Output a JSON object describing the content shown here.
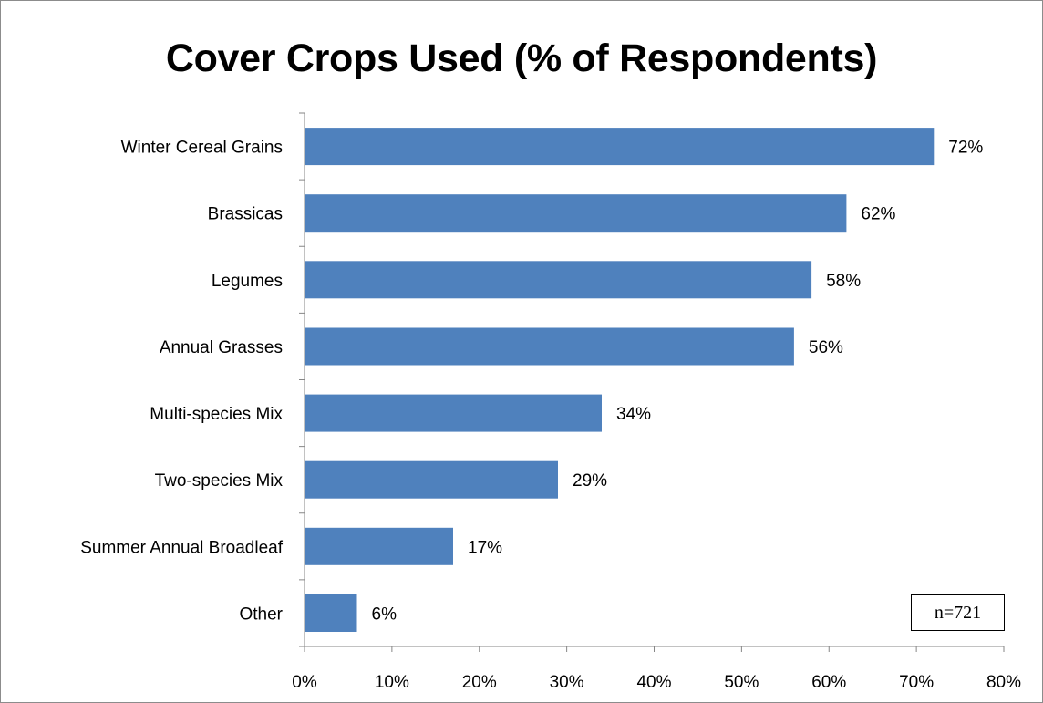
{
  "chart_data": {
    "type": "bar",
    "orientation": "horizontal",
    "title": "Cover Crops Used (% of Respondents)",
    "categories": [
      "Winter Cereal Grains",
      "Brassicas",
      "Legumes",
      "Annual Grasses",
      "Multi-species Mix",
      "Two-species Mix",
      "Summer Annual Broadleaf",
      "Other"
    ],
    "values": [
      72,
      62,
      58,
      56,
      34,
      29,
      17,
      6
    ],
    "data_labels": [
      "72%",
      "62%",
      "58%",
      "56%",
      "34%",
      "29%",
      "17%",
      "6%"
    ],
    "xlim": [
      0,
      80
    ],
    "xticks": [
      0,
      10,
      20,
      30,
      40,
      50,
      60,
      70,
      80
    ],
    "xtick_labels": [
      "0%",
      "10%",
      "20%",
      "30%",
      "40%",
      "50%",
      "60%",
      "70%",
      "80%"
    ],
    "grid": false,
    "bar_color": "#4f81bd",
    "annotation": "n=721"
  }
}
